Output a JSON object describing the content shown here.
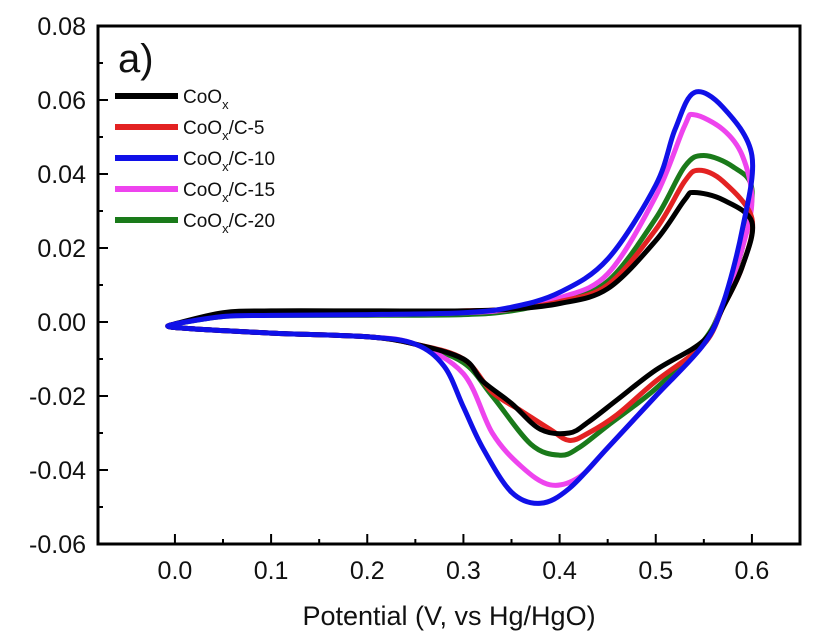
{
  "chart_data": {
    "type": "line",
    "panel_label": "a)",
    "xlabel": "Potential (V, vs Hg/HgO)",
    "ylabel": "",
    "xlim": [
      -0.08,
      0.65
    ],
    "ylim": [
      -0.06,
      0.08
    ],
    "x_ticks": [
      0.0,
      0.1,
      0.2,
      0.3,
      0.4,
      0.5,
      0.6
    ],
    "x_tick_labels": [
      "0.0",
      "0.1",
      "0.2",
      "0.3",
      "0.4",
      "0.5",
      "0.6"
    ],
    "y_ticks": [
      -0.06,
      -0.04,
      -0.02,
      0.0,
      0.02,
      0.04,
      0.06,
      0.08
    ],
    "y_tick_labels": [
      "-0.06",
      "-0.04",
      "-0.02",
      "0.00",
      "0.02",
      "0.04",
      "0.06",
      "0.08"
    ],
    "grid": false,
    "legend_position": "top-left",
    "series": [
      {
        "name": "CoOx/C-20",
        "legend_main": "CoO",
        "legend_sub": "x",
        "legend_suffix": "/C-20",
        "color": "#1a7a1a",
        "points": [
          [
            0.0,
            -0.0005
          ],
          [
            0.05,
            0.0015
          ],
          [
            0.1,
            0.0018
          ],
          [
            0.2,
            0.0018
          ],
          [
            0.3,
            0.002
          ],
          [
            0.35,
            0.003
          ],
          [
            0.4,
            0.006
          ],
          [
            0.45,
            0.011
          ],
          [
            0.5,
            0.028
          ],
          [
            0.53,
            0.042
          ],
          [
            0.55,
            0.045
          ],
          [
            0.58,
            0.042
          ],
          [
            0.6,
            0.036
          ],
          [
            0.59,
            0.02
          ],
          [
            0.57,
            0.005
          ],
          [
            0.55,
            -0.005
          ],
          [
            0.5,
            -0.018
          ],
          [
            0.45,
            -0.028
          ],
          [
            0.42,
            -0.034
          ],
          [
            0.4,
            -0.036
          ],
          [
            0.37,
            -0.033
          ],
          [
            0.33,
            -0.02
          ],
          [
            0.3,
            -0.011
          ],
          [
            0.25,
            -0.006
          ],
          [
            0.2,
            -0.004
          ],
          [
            0.1,
            -0.003
          ],
          [
            0.0,
            -0.0015
          ],
          [
            0.0,
            -0.0005
          ]
        ]
      },
      {
        "name": "CoOx/C-15",
        "legend_main": "CoO",
        "legend_sub": "x",
        "legend_suffix": "/C-15",
        "color": "#ee44ee",
        "points": [
          [
            0.0,
            -0.0005
          ],
          [
            0.05,
            0.0017
          ],
          [
            0.1,
            0.002
          ],
          [
            0.2,
            0.002
          ],
          [
            0.3,
            0.0025
          ],
          [
            0.35,
            0.0035
          ],
          [
            0.4,
            0.0065
          ],
          [
            0.45,
            0.013
          ],
          [
            0.5,
            0.034
          ],
          [
            0.53,
            0.053
          ],
          [
            0.54,
            0.056
          ],
          [
            0.57,
            0.052
          ],
          [
            0.59,
            0.045
          ],
          [
            0.6,
            0.033
          ],
          [
            0.59,
            0.02
          ],
          [
            0.57,
            0.005
          ],
          [
            0.55,
            -0.006
          ],
          [
            0.5,
            -0.02
          ],
          [
            0.45,
            -0.034
          ],
          [
            0.42,
            -0.042
          ],
          [
            0.39,
            -0.044
          ],
          [
            0.36,
            -0.039
          ],
          [
            0.33,
            -0.03
          ],
          [
            0.3,
            -0.014
          ],
          [
            0.25,
            -0.006
          ],
          [
            0.2,
            -0.004
          ],
          [
            0.1,
            -0.003
          ],
          [
            0.0,
            -0.0015
          ],
          [
            0.0,
            -0.0005
          ]
        ]
      },
      {
        "name": "CoOx/C-5",
        "legend_main": "CoO",
        "legend_sub": "x",
        "legend_suffix": "/C-5",
        "color": "#e32222",
        "points": [
          [
            0.0,
            -0.0005
          ],
          [
            0.05,
            0.002
          ],
          [
            0.1,
            0.0025
          ],
          [
            0.2,
            0.0025
          ],
          [
            0.3,
            0.003
          ],
          [
            0.35,
            0.0035
          ],
          [
            0.4,
            0.0055
          ],
          [
            0.45,
            0.01
          ],
          [
            0.5,
            0.025
          ],
          [
            0.53,
            0.038
          ],
          [
            0.545,
            0.041
          ],
          [
            0.57,
            0.038
          ],
          [
            0.6,
            0.028
          ],
          [
            0.59,
            0.015
          ],
          [
            0.57,
            0.004
          ],
          [
            0.55,
            -0.006
          ],
          [
            0.5,
            -0.016
          ],
          [
            0.46,
            -0.025
          ],
          [
            0.43,
            -0.03
          ],
          [
            0.41,
            -0.032
          ],
          [
            0.39,
            -0.029
          ],
          [
            0.36,
            -0.024
          ],
          [
            0.33,
            -0.019
          ],
          [
            0.3,
            -0.01
          ],
          [
            0.25,
            -0.006
          ],
          [
            0.2,
            -0.004
          ],
          [
            0.1,
            -0.003
          ],
          [
            0.0,
            -0.0015
          ],
          [
            0.0,
            -0.0005
          ]
        ]
      },
      {
        "name": "CoOx",
        "legend_main": "CoO",
        "legend_sub": "x",
        "legend_suffix": "",
        "color": "#000000",
        "points": [
          [
            0.0,
            -0.0005
          ],
          [
            0.05,
            0.0025
          ],
          [
            0.1,
            0.003
          ],
          [
            0.2,
            0.003
          ],
          [
            0.3,
            0.003
          ],
          [
            0.35,
            0.0035
          ],
          [
            0.4,
            0.005
          ],
          [
            0.45,
            0.009
          ],
          [
            0.5,
            0.022
          ],
          [
            0.53,
            0.033
          ],
          [
            0.54,
            0.035
          ],
          [
            0.57,
            0.033
          ],
          [
            0.6,
            0.027
          ],
          [
            0.59,
            0.015
          ],
          [
            0.57,
            0.004
          ],
          [
            0.55,
            -0.005
          ],
          [
            0.5,
            -0.013
          ],
          [
            0.46,
            -0.021
          ],
          [
            0.43,
            -0.027
          ],
          [
            0.41,
            -0.03
          ],
          [
            0.38,
            -0.029
          ],
          [
            0.35,
            -0.022
          ],
          [
            0.32,
            -0.016
          ],
          [
            0.3,
            -0.01
          ],
          [
            0.25,
            -0.006
          ],
          [
            0.2,
            -0.004
          ],
          [
            0.1,
            -0.003
          ],
          [
            0.0,
            -0.0015
          ],
          [
            0.0,
            -0.0005
          ]
        ]
      },
      {
        "name": "CoOx/C-10",
        "legend_main": "CoO",
        "legend_sub": "x",
        "legend_suffix": "/C-10",
        "color": "#1010e8",
        "points": [
          [
            0.0,
            -0.0005
          ],
          [
            0.05,
            0.0015
          ],
          [
            0.1,
            0.0018
          ],
          [
            0.2,
            0.002
          ],
          [
            0.3,
            0.0025
          ],
          [
            0.35,
            0.004
          ],
          [
            0.4,
            0.008
          ],
          [
            0.45,
            0.017
          ],
          [
            0.5,
            0.037
          ],
          [
            0.52,
            0.052
          ],
          [
            0.54,
            0.062
          ],
          [
            0.57,
            0.058
          ],
          [
            0.6,
            0.045
          ],
          [
            0.59,
            0.025
          ],
          [
            0.57,
            0.005
          ],
          [
            0.55,
            -0.006
          ],
          [
            0.5,
            -0.02
          ],
          [
            0.45,
            -0.034
          ],
          [
            0.41,
            -0.045
          ],
          [
            0.38,
            -0.049
          ],
          [
            0.35,
            -0.046
          ],
          [
            0.32,
            -0.034
          ],
          [
            0.3,
            -0.023
          ],
          [
            0.28,
            -0.012
          ],
          [
            0.25,
            -0.006
          ],
          [
            0.2,
            -0.004
          ],
          [
            0.1,
            -0.003
          ],
          [
            0.0,
            -0.0015
          ],
          [
            0.0,
            -0.0005
          ]
        ]
      }
    ],
    "legend_order": [
      "CoOx",
      "CoOx/C-5",
      "CoOx/C-10",
      "CoOx/C-15",
      "CoOx/C-20"
    ]
  }
}
